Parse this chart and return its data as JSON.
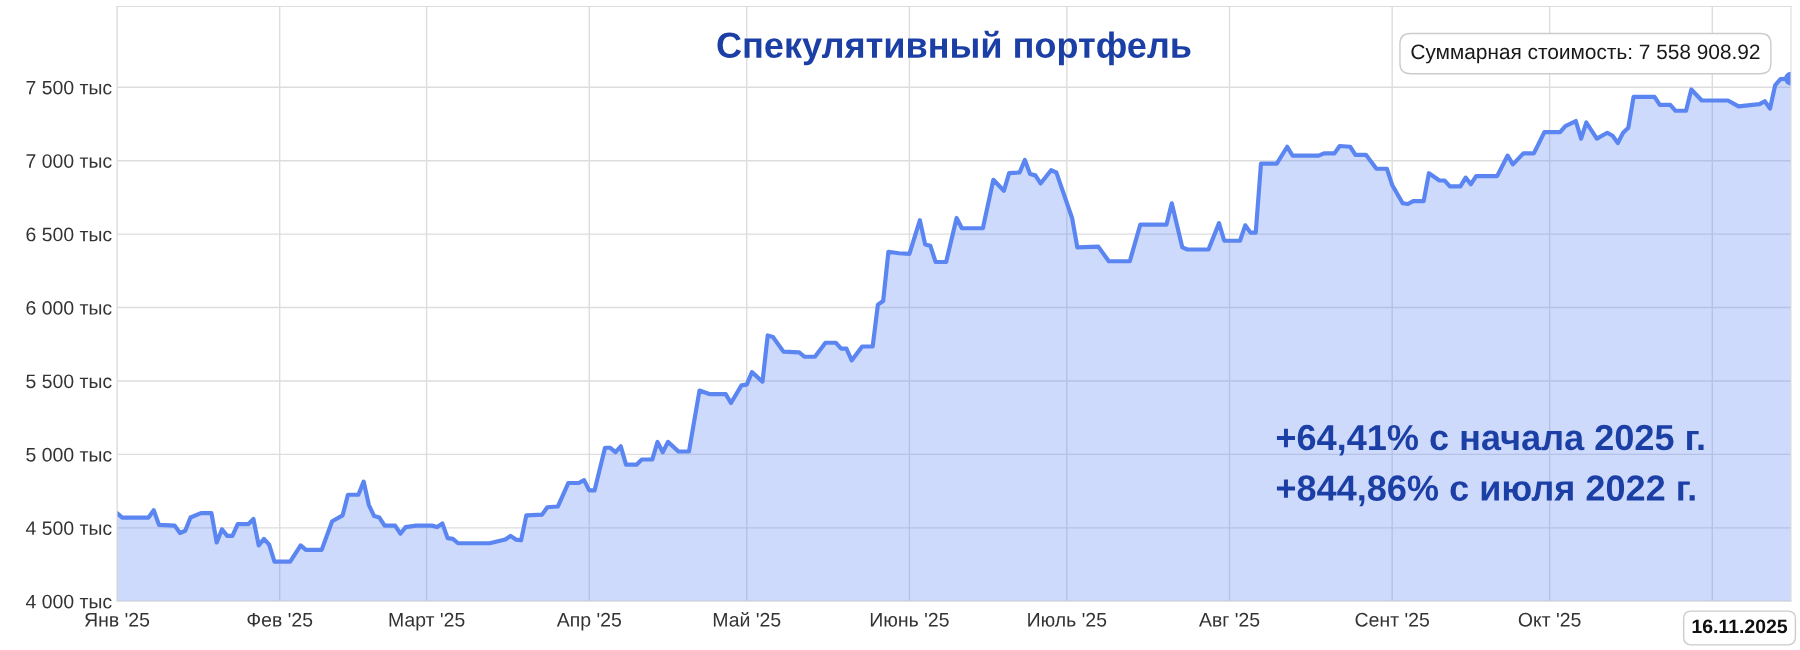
{
  "chart_data": {
    "type": "area",
    "title": "Спекулятивный портфель",
    "x": [
      "2025-01-01",
      "2025-01-02",
      "2025-01-07",
      "2025-01-08",
      "2025-01-09",
      "2025-01-12",
      "2025-01-13",
      "2025-01-14",
      "2025-01-15",
      "2025-01-17",
      "2025-01-19",
      "2025-01-20",
      "2025-01-21",
      "2025-01-22",
      "2025-01-23",
      "2025-01-24",
      "2025-01-26",
      "2025-01-27",
      "2025-01-28",
      "2025-01-29",
      "2025-01-30",
      "2025-01-31",
      "2025-02-03",
      "2025-02-05",
      "2025-02-06",
      "2025-02-09",
      "2025-02-11",
      "2025-02-13",
      "2025-02-14",
      "2025-02-16",
      "2025-02-17",
      "2025-02-18",
      "2025-02-19",
      "2025-02-20",
      "2025-02-21",
      "2025-02-23",
      "2025-02-24",
      "2025-02-25",
      "2025-02-27",
      "2025-03-02",
      "2025-03-03",
      "2025-03-04",
      "2025-03-05",
      "2025-03-06",
      "2025-03-07",
      "2025-03-13",
      "2025-03-16",
      "2025-03-17",
      "2025-03-18",
      "2025-03-19",
      "2025-03-20",
      "2025-03-23",
      "2025-03-24",
      "2025-03-26",
      "2025-03-28",
      "2025-03-30",
      "2025-03-31",
      "2025-04-01",
      "2025-04-02",
      "2025-04-04",
      "2025-04-05",
      "2025-04-06",
      "2025-04-07",
      "2025-04-08",
      "2025-04-10",
      "2025-04-11",
      "2025-04-13",
      "2025-04-14",
      "2025-04-15",
      "2025-04-16",
      "2025-04-18",
      "2025-04-20",
      "2025-04-22",
      "2025-04-24",
      "2025-04-27",
      "2025-04-28",
      "2025-04-30",
      "2025-05-01",
      "2025-05-02",
      "2025-05-04",
      "2025-05-05",
      "2025-05-06",
      "2025-05-08",
      "2025-05-11",
      "2025-05-12",
      "2025-05-14",
      "2025-05-16",
      "2025-05-18",
      "2025-05-19",
      "2025-05-20",
      "2025-05-21",
      "2025-05-23",
      "2025-05-25",
      "2025-05-26",
      "2025-05-27",
      "2025-05-28",
      "2025-05-30",
      "2025-06-01",
      "2025-06-03",
      "2025-06-04",
      "2025-06-05",
      "2025-06-06",
      "2025-06-08",
      "2025-06-10",
      "2025-06-11",
      "2025-06-15",
      "2025-06-17",
      "2025-06-19",
      "2025-06-20",
      "2025-06-22",
      "2025-06-23",
      "2025-06-24",
      "2025-06-25",
      "2025-06-26",
      "2025-06-28",
      "2025-06-29",
      "2025-07-02",
      "2025-07-03",
      "2025-07-07",
      "2025-07-09",
      "2025-07-13",
      "2025-07-15",
      "2025-07-20",
      "2025-07-21",
      "2025-07-23",
      "2025-07-24",
      "2025-07-28",
      "2025-07-30",
      "2025-07-31",
      "2025-08-03",
      "2025-08-04",
      "2025-08-05",
      "2025-08-06",
      "2025-08-07",
      "2025-08-10",
      "2025-08-12",
      "2025-08-13",
      "2025-08-18",
      "2025-08-19",
      "2025-08-21",
      "2025-08-22",
      "2025-08-24",
      "2025-08-25",
      "2025-08-27",
      "2025-08-29",
      "2025-08-31",
      "2025-09-01",
      "2025-09-03",
      "2025-09-04",
      "2025-09-05",
      "2025-09-07",
      "2025-09-08",
      "2025-09-10",
      "2025-09-11",
      "2025-09-12",
      "2025-09-14",
      "2025-09-15",
      "2025-09-16",
      "2025-09-17",
      "2025-09-21",
      "2025-09-23",
      "2025-09-24",
      "2025-09-26",
      "2025-09-28",
      "2025-09-30",
      "2025-10-03",
      "2025-10-04",
      "2025-10-06",
      "2025-10-07",
      "2025-10-08",
      "2025-10-10",
      "2025-10-12",
      "2025-10-13",
      "2025-10-14",
      "2025-10-15",
      "2025-10-16",
      "2025-10-17",
      "2025-10-21",
      "2025-10-22",
      "2025-10-24",
      "2025-10-25",
      "2025-10-27",
      "2025-10-28",
      "2025-10-30",
      "2025-11-04",
      "2025-11-06",
      "2025-11-10",
      "2025-11-11",
      "2025-11-12",
      "2025-11-13",
      "2025-11-14",
      "2025-11-16"
    ],
    "series": [
      {
        "color": "#5b86f2",
        "values": [
          4600,
          4570,
          4570,
          4620,
          4520,
          4515,
          4465,
          4480,
          4570,
          4600,
          4600,
          4400,
          4490,
          4445,
          4445,
          4525,
          4525,
          4560,
          4380,
          4425,
          4385,
          4270,
          4270,
          4380,
          4350,
          4350,
          4545,
          4585,
          4725,
          4725,
          4815,
          4655,
          4580,
          4570,
          4515,
          4515,
          4460,
          4505,
          4515,
          4515,
          4505,
          4530,
          4430,
          4425,
          4395,
          4395,
          4420,
          4445,
          4420,
          4415,
          4585,
          4590,
          4640,
          4645,
          4805,
          4805,
          4825,
          4755,
          4755,
          5045,
          5045,
          5015,
          5055,
          4930,
          4930,
          4965,
          4965,
          5085,
          5015,
          5085,
          5020,
          5020,
          5435,
          5410,
          5410,
          5350,
          5470,
          5475,
          5560,
          5495,
          5810,
          5800,
          5700,
          5695,
          5665,
          5665,
          5760,
          5760,
          5720,
          5720,
          5640,
          5735,
          5735,
          6020,
          6045,
          6380,
          6370,
          6365,
          6595,
          6430,
          6420,
          6310,
          6310,
          6610,
          6540,
          6540,
          6870,
          6795,
          6915,
          6920,
          7005,
          6910,
          6900,
          6845,
          6935,
          6920,
          6610,
          6410,
          6415,
          6315,
          6315,
          6565,
          6565,
          6710,
          6410,
          6395,
          6395,
          6575,
          6455,
          6455,
          6560,
          6510,
          6510,
          6980,
          6980,
          7095,
          7035,
          7035,
          7050,
          7050,
          7100,
          7095,
          7040,
          7040,
          6945,
          6945,
          6835,
          6710,
          6705,
          6725,
          6725,
          6915,
          6865,
          6865,
          6825,
          6825,
          6885,
          6840,
          6895,
          6895,
          7035,
          6975,
          7050,
          7050,
          7195,
          7195,
          7235,
          7270,
          7150,
          7260,
          7150,
          7190,
          7170,
          7120,
          7190,
          7225,
          7435,
          7435,
          7380,
          7380,
          7340,
          7340,
          7485,
          7410,
          7410,
          7370,
          7385,
          7405,
          7355,
          7515,
          7555,
          7558.90892
        ]
      }
    ],
    "xlim": [
      "2025-01-01",
      "2025-11-16"
    ],
    "xticks": [
      {
        "value": "2025-01-01",
        "label": "Янв '25"
      },
      {
        "value": "2025-02-01",
        "label": "Фев '25"
      },
      {
        "value": "2025-03-01",
        "label": "Март '25"
      },
      {
        "value": "2025-04-01",
        "label": "Апр '25"
      },
      {
        "value": "2025-05-01",
        "label": "Май '25"
      },
      {
        "value": "2025-06-01",
        "label": "Июнь '25"
      },
      {
        "value": "2025-07-01",
        "label": "Июль '25"
      },
      {
        "value": "2025-08-01",
        "label": "Авг '25"
      },
      {
        "value": "2025-09-01",
        "label": "Сент '25"
      },
      {
        "value": "2025-10-01",
        "label": "Окт '25"
      },
      {
        "value": "2025-11-01",
        "label": null
      }
    ],
    "ylim": [
      4000,
      8050
    ],
    "yticks": [
      {
        "value": 4000,
        "label": "4 000 тыс"
      },
      {
        "value": 4500,
        "label": "4 500 тыс"
      },
      {
        "value": 5000,
        "label": "5 000 тыс"
      },
      {
        "value": 5500,
        "label": "5 500 тыс"
      },
      {
        "value": 6000,
        "label": "6 000 тыс"
      },
      {
        "value": 6500,
        "label": "6 500 тыс"
      },
      {
        "value": 7000,
        "label": "7 000 тыс"
      },
      {
        "value": 7500,
        "label": "7 500 тыс"
      }
    ],
    "grid": true,
    "annotations": [
      {
        "text": "Суммарная стоимость: 7 558 908.92",
        "x": "2025-11-16",
        "y": 7558.90892
      },
      "+64,41% с начала 2025 г.",
      "+844,86% с июля 2022 г.",
      "16.11.2025"
    ]
  }
}
